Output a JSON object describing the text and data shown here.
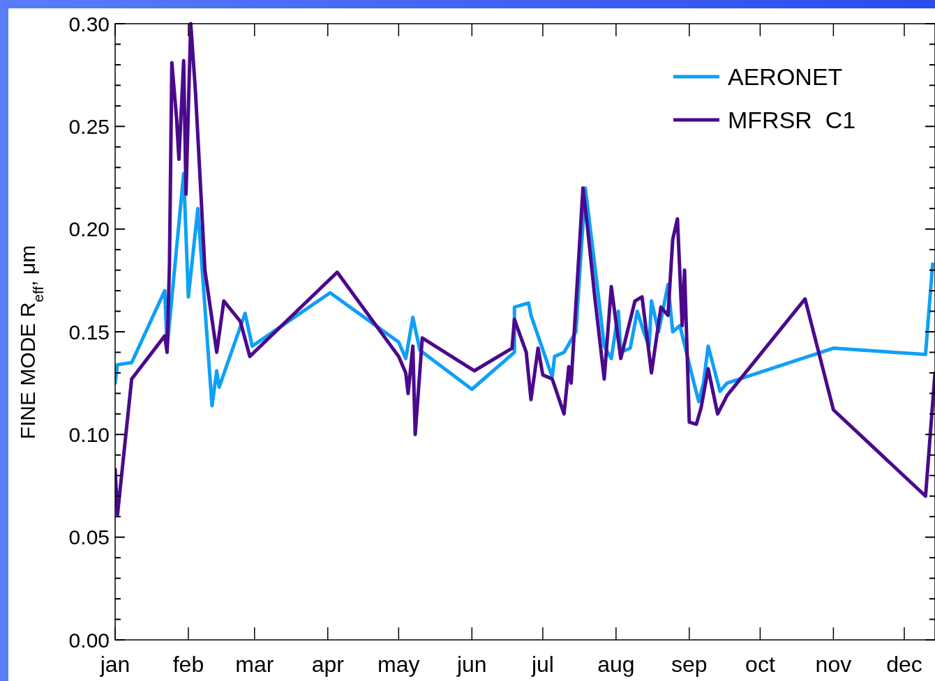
{
  "chart_data": {
    "type": "line",
    "ylabel": "FINE MODE R$_{eff}$, μm",
    "xlim": [
      "--01-01",
      "--12-14"
    ],
    "ylim": [
      0,
      0.3
    ],
    "xticks": [
      {
        "value": "--01-01",
        "label": "jan"
      },
      {
        "value": "--02-01",
        "label": "feb"
      },
      {
        "value": "--03-01",
        "label": "mar"
      },
      {
        "value": "--04-01",
        "label": "apr"
      },
      {
        "value": "--05-01",
        "label": "may"
      },
      {
        "value": "--06-01",
        "label": "jun"
      },
      {
        "value": "--07-01",
        "label": "jul"
      },
      {
        "value": "--08-01",
        "label": "aug"
      },
      {
        "value": "--09-01",
        "label": "sep"
      },
      {
        "value": "--10-01",
        "label": "oct"
      },
      {
        "value": "--11-01",
        "label": "nov"
      },
      {
        "value": "--12-01",
        "label": "dec"
      }
    ],
    "yticks": [
      {
        "value": 0,
        "label": "0.00"
      },
      {
        "value": 0.01,
        "label": null
      },
      {
        "value": 0.02,
        "label": null
      },
      {
        "value": 0.03,
        "label": null
      },
      {
        "value": 0.04,
        "label": null
      },
      {
        "value": 0.05,
        "label": "0.05"
      },
      {
        "value": 0.06,
        "label": null
      },
      {
        "value": 0.07,
        "label": null
      },
      {
        "value": 0.08,
        "label": null
      },
      {
        "value": 0.09,
        "label": null
      },
      {
        "value": 0.1,
        "label": "0.10"
      },
      {
        "value": 0.11,
        "label": null
      },
      {
        "value": 0.12,
        "label": null
      },
      {
        "value": 0.13,
        "label": null
      },
      {
        "value": 0.14,
        "label": null
      },
      {
        "value": 0.15,
        "label": "0.15"
      },
      {
        "value": 0.16,
        "label": null
      },
      {
        "value": 0.17,
        "label": null
      },
      {
        "value": 0.18,
        "label": null
      },
      {
        "value": 0.19,
        "label": null
      },
      {
        "value": 0.2,
        "label": "0.20"
      },
      {
        "value": 0.21,
        "label": null
      },
      {
        "value": 0.22,
        "label": null
      },
      {
        "value": 0.23,
        "label": null
      },
      {
        "value": 0.24,
        "label": null
      },
      {
        "value": 0.25,
        "label": "0.25"
      },
      {
        "value": 0.26,
        "label": null
      },
      {
        "value": 0.27,
        "label": null
      },
      {
        "value": 0.28,
        "label": null
      },
      {
        "value": 0.29,
        "label": null
      },
      {
        "value": 0.3,
        "label": "0.30"
      }
    ],
    "grid": false,
    "legend": "top right",
    "marker": "none",
    "line_style": "solid",
    "series": [
      {
        "name": "AERONET",
        "color": "#0fa0f5",
        "x": [
          "--01-01",
          "--01-02",
          "--01-08",
          "--01-22",
          "--01-23",
          "--01-30",
          "--02-01",
          "--02-05",
          "--02-11",
          "--02-13",
          "--02-14",
          "--02-25",
          "--02-28",
          "--04-02",
          "--05-01",
          "--05-04",
          "--05-07",
          "--05-10",
          "--06-01",
          "--06-19",
          "--06-19",
          "--06-25",
          "--06-26",
          "--07-05",
          "--07-06",
          "--07-10",
          "--07-15",
          "--07-19",
          "--07-24",
          "--07-27",
          "--07-30",
          "--08-02",
          "--08-03",
          "--08-07",
          "--08-10",
          "--08-13",
          "--08-15",
          "--08-16",
          "--08-19",
          "--08-23",
          "--08-25",
          "--08-28",
          "--09-03",
          "--09-05",
          "--09-07",
          "--09-09",
          "--09-14",
          "--09-17",
          "--11-01",
          "--12-10",
          "--12-13"
        ],
        "values": [
          0.125,
          0.134,
          0.135,
          0.17,
          0.142,
          0.227,
          0.167,
          0.21,
          0.114,
          0.131,
          0.123,
          0.159,
          0.143,
          0.169,
          0.145,
          0.137,
          0.157,
          0.141,
          0.122,
          0.14,
          0.162,
          0.164,
          0.158,
          0.128,
          0.138,
          0.14,
          0.15,
          0.22,
          0.173,
          0.143,
          0.137,
          0.16,
          0.14,
          0.142,
          0.16,
          0.149,
          0.143,
          0.165,
          0.15,
          0.173,
          0.15,
          0.153,
          0.125,
          0.116,
          0.125,
          0.143,
          0.121,
          0.125,
          0.142,
          0.139,
          0.183
        ]
      },
      {
        "name": "MFRSR  C1",
        "color": "#4b0a8c",
        "x": [
          "--01-01",
          "--01-02",
          "--01-08",
          "--01-22",
          "--01-23",
          "--01-24",
          "--01-25",
          "--01-27",
          "--01-28",
          "--01-30",
          "--01-31",
          "--02-02",
          "--02-04",
          "--02-06",
          "--02-08",
          "--02-13",
          "--02-16",
          "--02-23",
          "--02-27",
          "--04-05",
          "--05-01",
          "--05-04",
          "--05-05",
          "--05-07",
          "--05-08",
          "--05-11",
          "--06-02",
          "--06-18",
          "--06-19",
          "--06-24",
          "--06-26",
          "--06-29",
          "--07-01",
          "--07-05",
          "--07-10",
          "--07-12",
          "--07-13",
          "--07-18",
          "--07-20",
          "--07-23",
          "--07-27",
          "--07-30",
          "--08-03",
          "--08-09",
          "--08-12",
          "--08-16",
          "--08-20",
          "--08-23",
          "--08-25",
          "--08-27",
          "--08-29",
          "--08-30",
          "--09-01",
          "--09-04",
          "--09-06",
          "--09-09",
          "--09-13",
          "--09-17",
          "--10-20",
          "--11-01",
          "--12-10",
          "--12-14"
        ],
        "values": [
          0.083,
          0.061,
          0.127,
          0.148,
          0.14,
          0.183,
          0.281,
          0.254,
          0.234,
          0.282,
          0.217,
          0.3,
          0.267,
          0.224,
          0.18,
          0.14,
          0.165,
          0.155,
          0.138,
          0.179,
          0.138,
          0.13,
          0.12,
          0.143,
          0.1,
          0.147,
          0.131,
          0.142,
          0.156,
          0.14,
          0.117,
          0.142,
          0.129,
          0.127,
          0.11,
          0.133,
          0.125,
          0.22,
          0.2,
          0.167,
          0.127,
          0.172,
          0.137,
          0.165,
          0.167,
          0.13,
          0.162,
          0.158,
          0.195,
          0.205,
          0.153,
          0.18,
          0.106,
          0.105,
          0.113,
          0.132,
          0.11,
          0.119,
          0.166,
          0.112,
          0.07,
          0.13
        ]
      }
    ]
  }
}
